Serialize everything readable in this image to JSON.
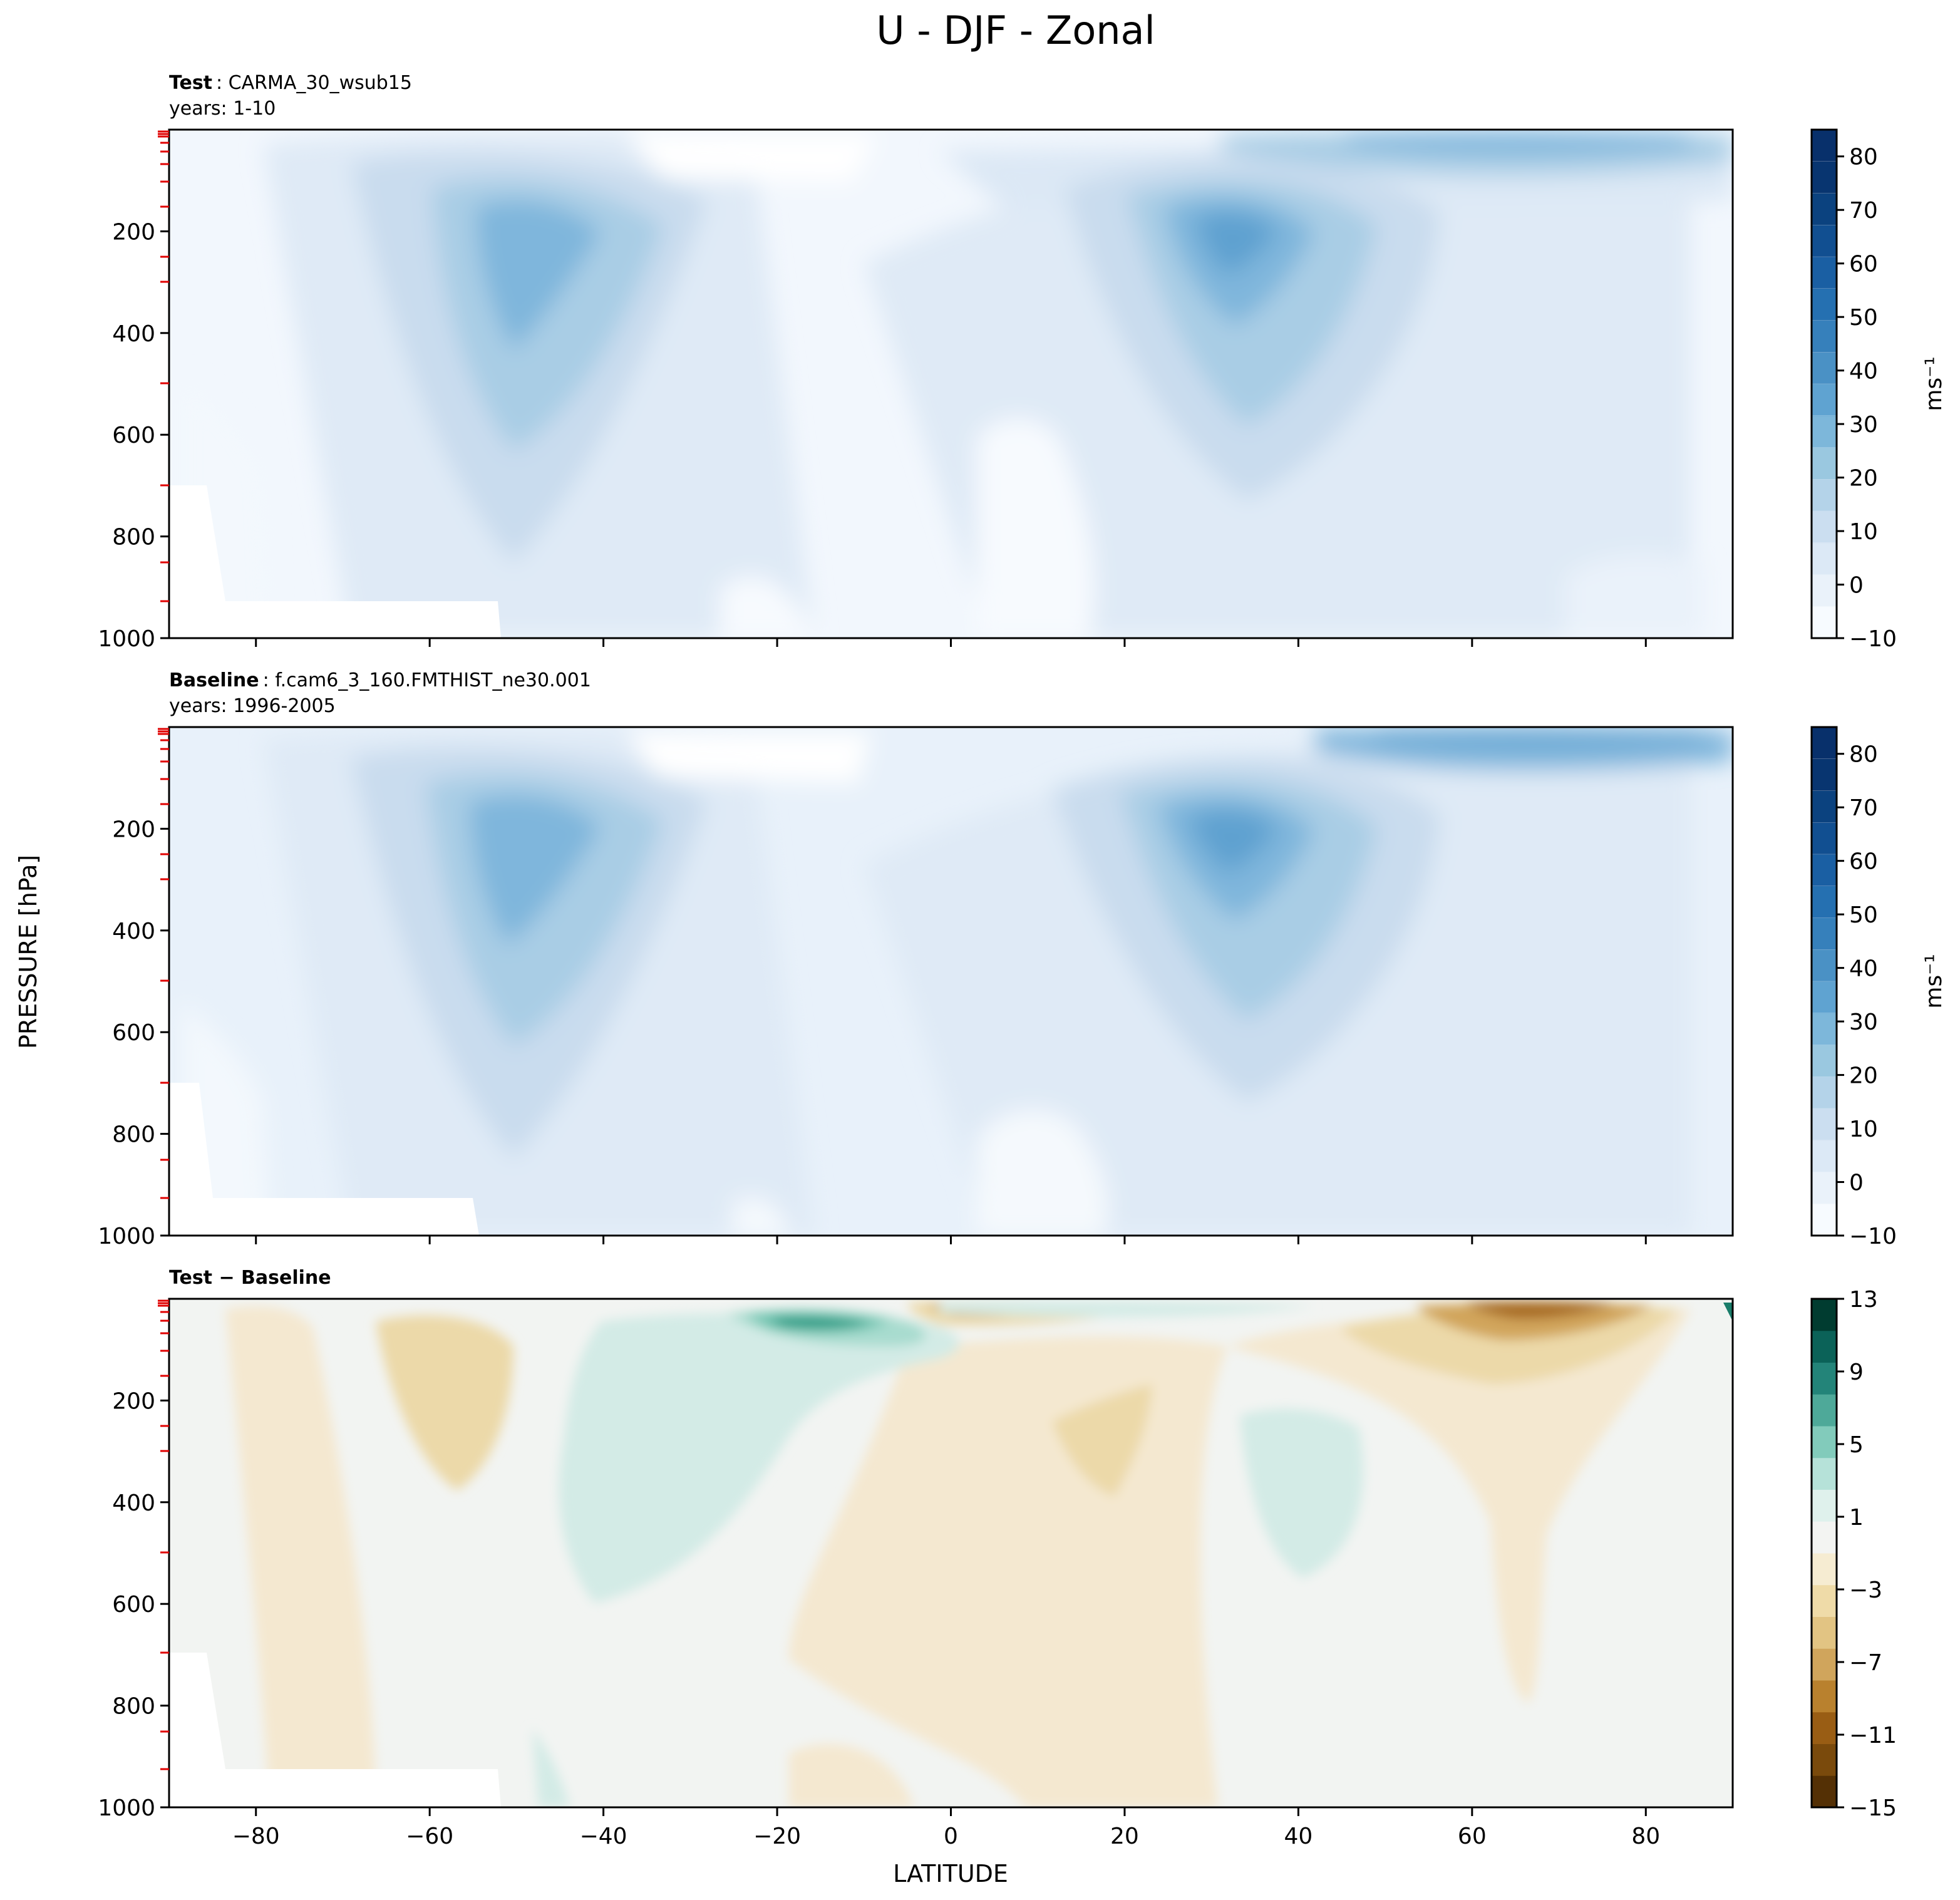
{
  "title": "U - DJF - Zonal",
  "xlabel": "LATITUDE",
  "ylabel": "PRESSURE [hPa]",
  "chart_data": [
    {
      "type": "contourf",
      "panel": "test",
      "title_bold": "Test",
      "title_rest": ": CARMA_30_wsub15",
      "subtitle": "years: 1-10",
      "xlim": [
        -90,
        90
      ],
      "ylim": [
        1000,
        0
      ],
      "xticks": [
        -80,
        -60,
        -40,
        -20,
        0,
        20,
        40,
        60,
        80
      ],
      "yticks": [
        200,
        400,
        600,
        800,
        1000
      ],
      "colorbar": {
        "label": "ms⁻¹",
        "ticks": [
          -10,
          0,
          10,
          20,
          30,
          40,
          50,
          60,
          70,
          80
        ],
        "range": [
          -10,
          85
        ],
        "colormap": "Blues"
      },
      "jets": [
        {
          "lat": -48,
          "p": 230,
          "peak": 40
        },
        {
          "lat": 32,
          "p": 200,
          "peak": 45
        },
        {
          "lat": 68,
          "p": 20,
          "peak": 30
        }
      ]
    },
    {
      "type": "contourf",
      "panel": "baseline",
      "title_bold": "Baseline",
      "title_rest": ": f.cam6_3_160.FMTHIST_ne30.001",
      "subtitle": "years: 1996-2005",
      "xlim": [
        -90,
        90
      ],
      "ylim": [
        1000,
        0
      ],
      "xticks": [
        -80,
        -60,
        -40,
        -20,
        0,
        20,
        40,
        60,
        80
      ],
      "yticks": [
        200,
        400,
        600,
        800,
        1000
      ],
      "colorbar": {
        "label": "ms⁻¹",
        "ticks": [
          -10,
          0,
          10,
          20,
          30,
          40,
          50,
          60,
          70,
          80
        ],
        "range": [
          -10,
          85
        ],
        "colormap": "Blues"
      },
      "jets": [
        {
          "lat": -48,
          "p": 230,
          "peak": 40
        },
        {
          "lat": 32,
          "p": 200,
          "peak": 45
        },
        {
          "lat": 68,
          "p": 15,
          "peak": 35
        }
      ]
    },
    {
      "type": "contourf",
      "panel": "difference",
      "title_bold": "Test − Baseline",
      "xlim": [
        -90,
        90
      ],
      "ylim": [
        1000,
        0
      ],
      "xticks": [
        -80,
        -60,
        -40,
        -20,
        0,
        20,
        40,
        60,
        80
      ],
      "yticks": [
        200,
        400,
        600,
        800,
        1000
      ],
      "colorbar": {
        "label": "",
        "ticks": [
          -15,
          -11,
          -7,
          -3,
          1,
          5,
          9,
          13
        ],
        "range": [
          -15,
          13
        ],
        "colormap": "BrBG"
      },
      "features": [
        {
          "lat": -13,
          "p": 60,
          "value": 9
        },
        {
          "lat": 2,
          "p": 25,
          "value": -9
        },
        {
          "lat": 68,
          "p": 30,
          "value": -9
        },
        {
          "lat": -55,
          "p": 180,
          "value": -5
        },
        {
          "lat": 25,
          "p": 300,
          "value": -5
        },
        {
          "lat": 37,
          "p": 380,
          "value": 3
        },
        {
          "lat": -40,
          "p": 300,
          "value": 3
        }
      ]
    }
  ]
}
